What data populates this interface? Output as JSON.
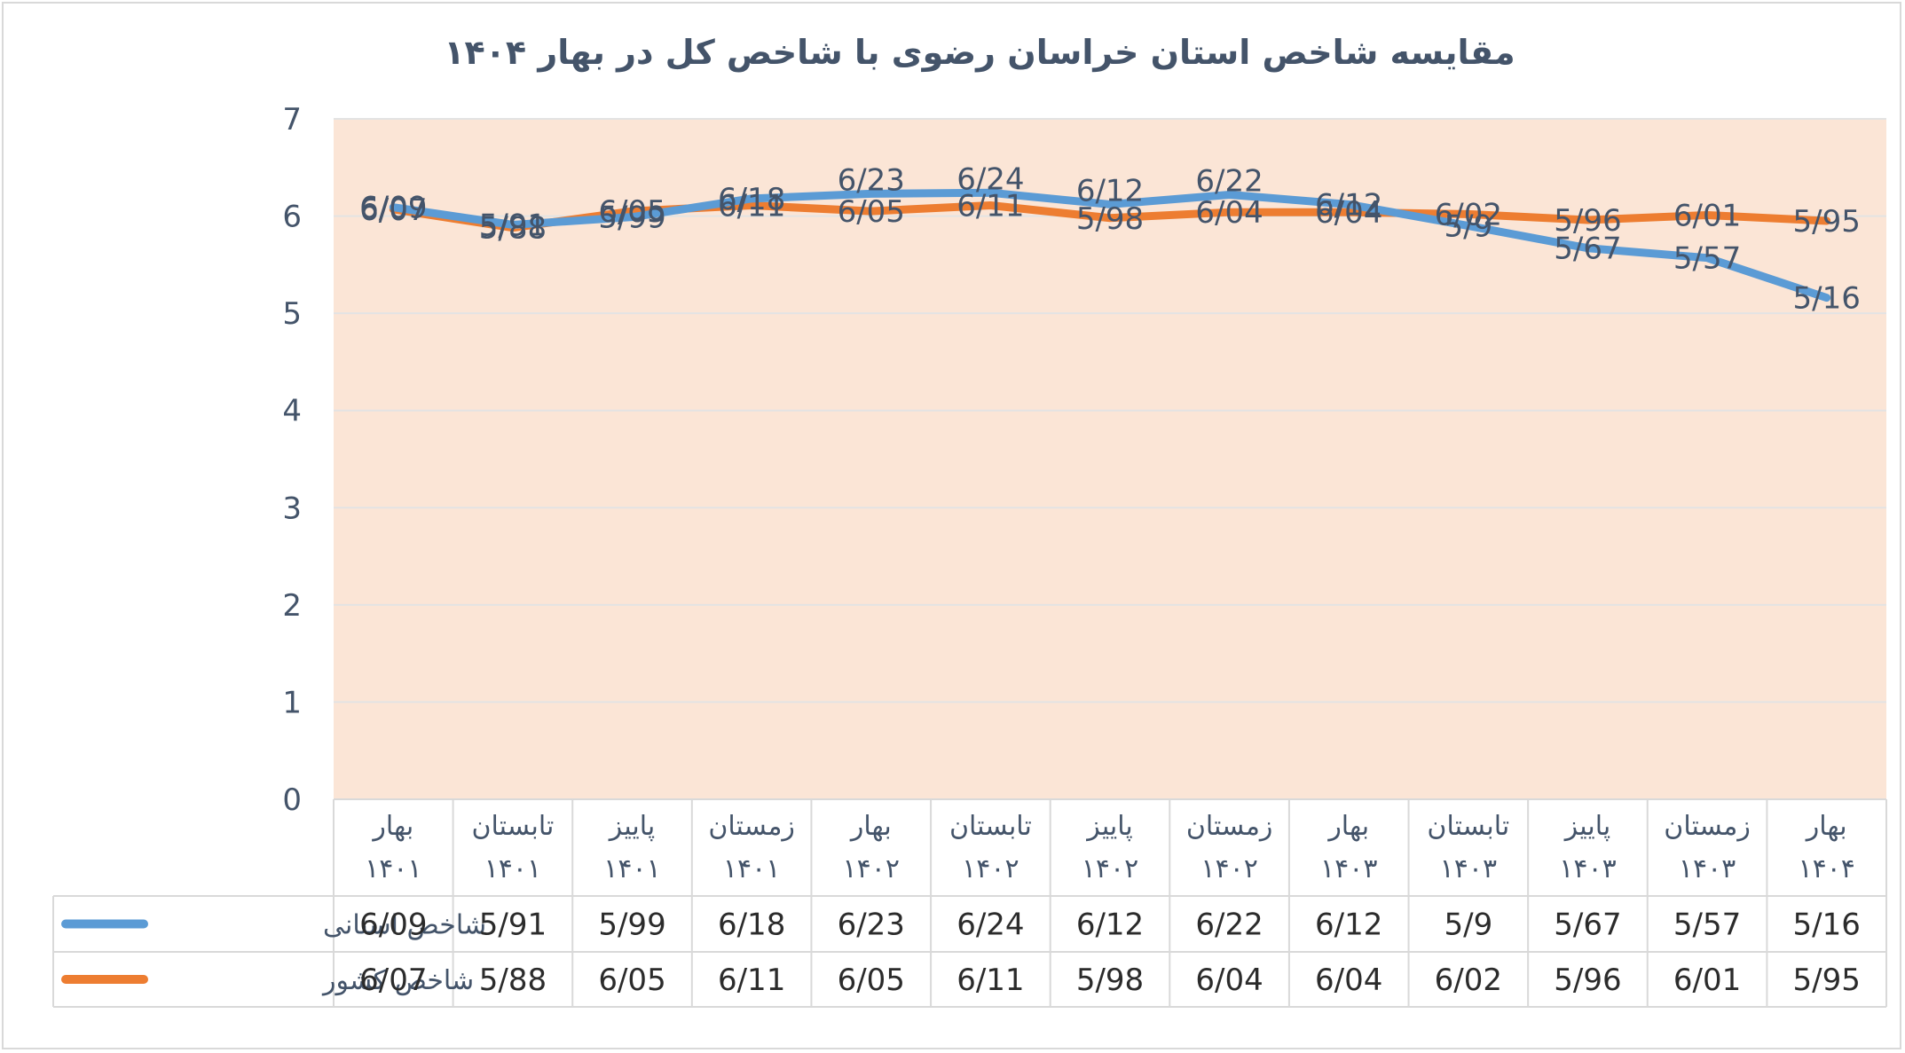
{
  "chart_data": {
    "type": "line",
    "title": "مقایسه شاخص استان خراسان رضوی با شاخص کل در بهار ۱۴۰۴",
    "categories": [
      {
        "season": "بهار",
        "year": "۱۴۰۱"
      },
      {
        "season": "تابستان",
        "year": "۱۴۰۱"
      },
      {
        "season": "پاییز",
        "year": "۱۴۰۱"
      },
      {
        "season": "زمستان",
        "year": "۱۴۰۱"
      },
      {
        "season": "بهار",
        "year": "۱۴۰۲"
      },
      {
        "season": "تابستان",
        "year": "۱۴۰۲"
      },
      {
        "season": "پاییز",
        "year": "۱۴۰۲"
      },
      {
        "season": "زمستان",
        "year": "۱۴۰۲"
      },
      {
        "season": "بهار",
        "year": "۱۴۰۳"
      },
      {
        "season": "تابستان",
        "year": "۱۴۰۳"
      },
      {
        "season": "پاییز",
        "year": "۱۴۰۳"
      },
      {
        "season": "زمستان",
        "year": "۱۴۰۳"
      },
      {
        "season": "بهار",
        "year": "۱۴۰۴"
      }
    ],
    "series": [
      {
        "name": "شاخص استانی",
        "color": "#5b9bd5",
        "values": [
          6.09,
          5.91,
          5.99,
          6.18,
          6.23,
          6.24,
          6.12,
          6.22,
          6.12,
          5.9,
          5.67,
          5.57,
          5.16
        ],
        "labels": [
          "6/09",
          "5/91",
          "5/99",
          "6/18",
          "6/23",
          "6/24",
          "6/12",
          "6/22",
          "6/12",
          "5/9",
          "5/67",
          "5/57",
          "5/16"
        ]
      },
      {
        "name": "شاخص کشور",
        "color": "#ed7d31",
        "values": [
          6.07,
          5.88,
          6.05,
          6.11,
          6.05,
          6.11,
          5.98,
          6.04,
          6.04,
          6.02,
          5.96,
          6.01,
          5.95
        ],
        "labels": [
          "6/07",
          "5/88",
          "6/05",
          "6/11",
          "6/05",
          "6/11",
          "5/98",
          "6/04",
          "6/04",
          "6/02",
          "5/96",
          "6/01",
          "5/95"
        ]
      }
    ],
    "yticks": [
      "0",
      "1",
      "2",
      "3",
      "4",
      "5",
      "6",
      "7"
    ],
    "ylim": [
      0,
      7
    ],
    "grid": true,
    "data_table": true,
    "plot_background": "#fbe5d6",
    "text_color": "#44546a"
  }
}
